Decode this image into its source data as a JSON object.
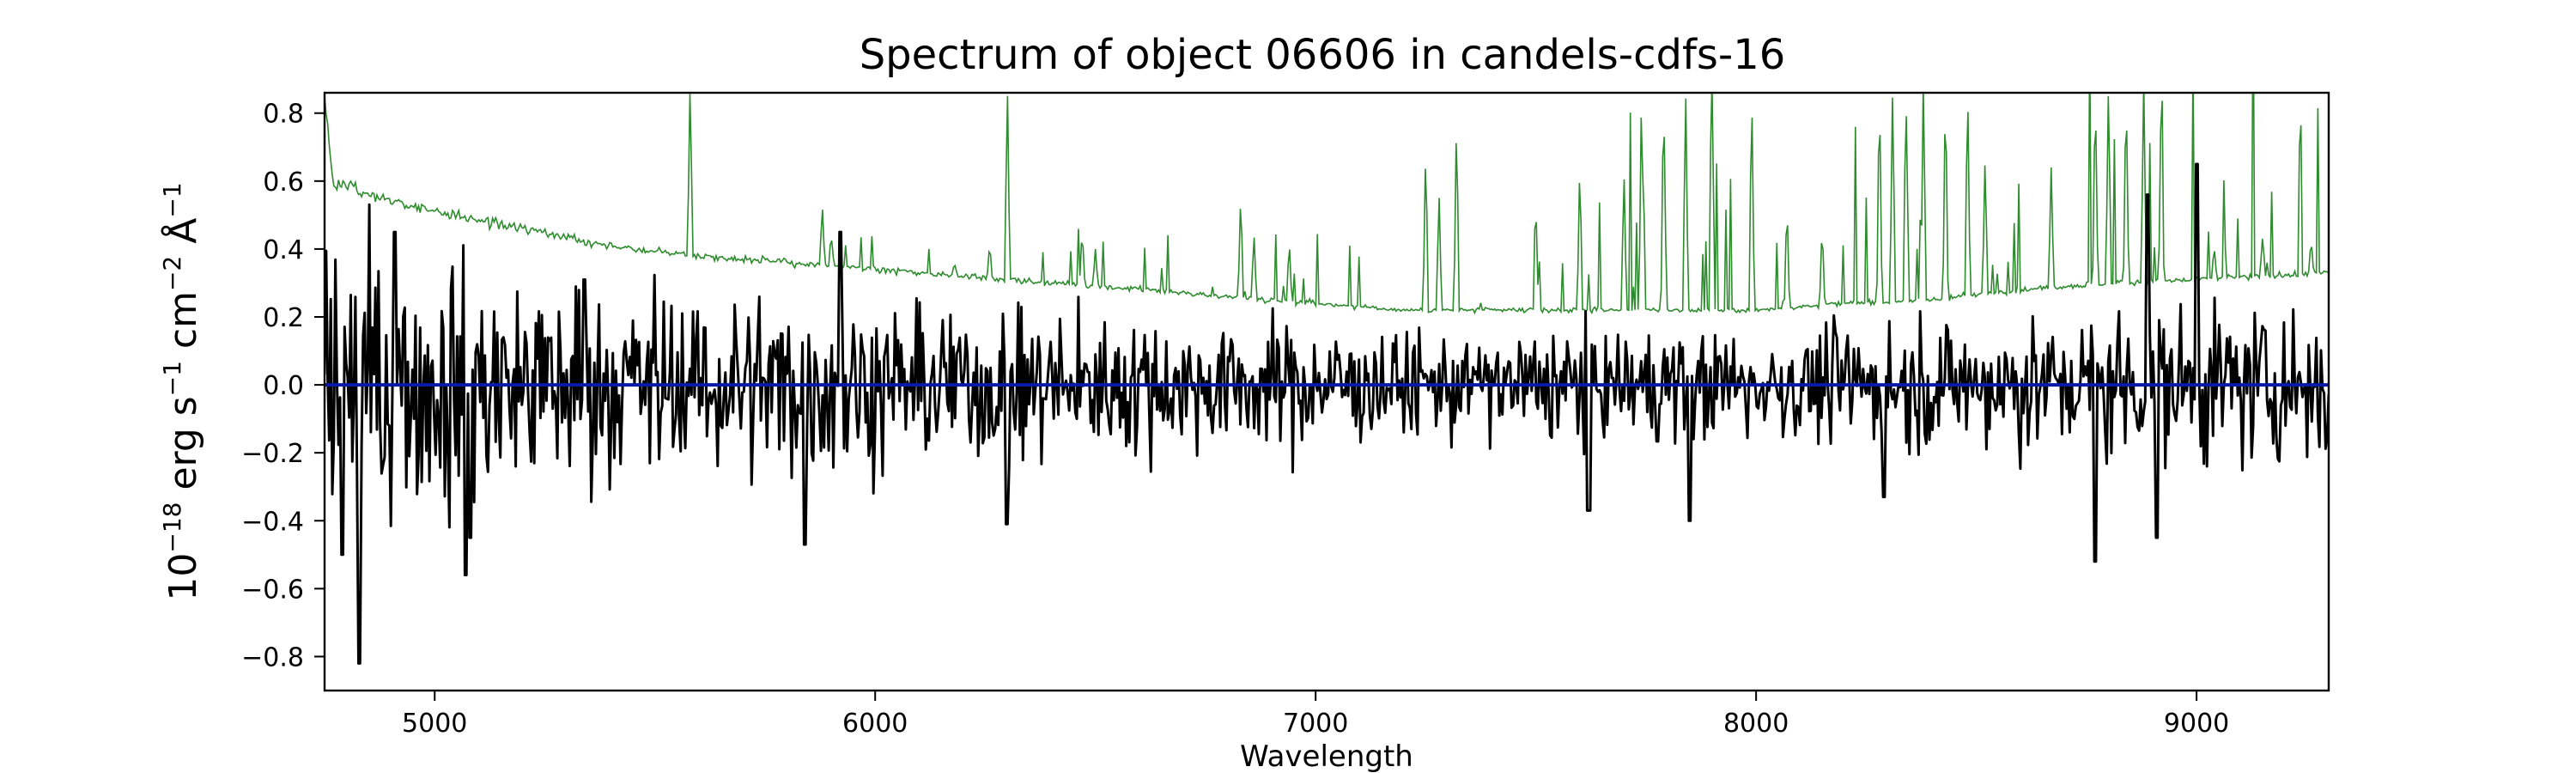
{
  "chart_data": {
    "type": "line",
    "title": "Spectrum of object 06606 in candels-cdfs-16",
    "xlabel": "Wavelength",
    "ylabel": {
      "prefix": "10",
      "exp": "−18",
      "text1": " erg s",
      "exp1": "−1",
      "text2": " cm",
      "exp2": "−2",
      "text3": " Å",
      "exp3": "−1"
    },
    "xlim": [
      4750,
      9300
    ],
    "ylim": [
      -0.9,
      0.86
    ],
    "xticks": [
      5000,
      6000,
      7000,
      8000,
      9000
    ],
    "yticks": [
      -0.8,
      -0.6,
      -0.4,
      -0.2,
      0.0,
      0.2,
      0.4,
      0.6,
      0.8
    ],
    "grid": false,
    "series": [
      {
        "role": "error",
        "color": "#2e8b2e",
        "continuum": [
          [
            4750,
            0.85
          ],
          [
            4770,
            0.58
          ],
          [
            4800,
            0.59
          ],
          [
            4850,
            0.56
          ],
          [
            5000,
            0.51
          ],
          [
            5200,
            0.46
          ],
          [
            5400,
            0.41
          ],
          [
            5600,
            0.38
          ],
          [
            5800,
            0.36
          ],
          [
            6000,
            0.34
          ],
          [
            6200,
            0.32
          ],
          [
            6500,
            0.29
          ],
          [
            6800,
            0.26
          ],
          [
            7000,
            0.24
          ],
          [
            7200,
            0.22
          ],
          [
            7400,
            0.22
          ],
          [
            7600,
            0.22
          ],
          [
            7800,
            0.22
          ],
          [
            8000,
            0.22
          ],
          [
            8200,
            0.24
          ],
          [
            8400,
            0.25
          ],
          [
            8600,
            0.28
          ],
          [
            8800,
            0.3
          ],
          [
            9000,
            0.31
          ],
          [
            9300,
            0.33
          ]
        ],
        "peaks": [
          [
            5580,
            0.9
          ],
          [
            5880,
            0.53
          ],
          [
            5900,
            0.45
          ],
          [
            6300,
            0.9
          ],
          [
            6180,
            0.36
          ],
          [
            6260,
            0.42
          ],
          [
            6470,
            0.46
          ],
          [
            6500,
            0.4
          ],
          [
            6830,
            0.57
          ],
          [
            6860,
            0.45
          ],
          [
            6940,
            0.43
          ],
          [
            7250,
            0.72
          ],
          [
            7280,
            0.58
          ],
          [
            7320,
            0.81
          ],
          [
            7500,
            0.52
          ],
          [
            7600,
            0.67
          ],
          [
            7700,
            0.64
          ],
          [
            7740,
            0.9
          ],
          [
            7790,
            0.9
          ],
          [
            7840,
            0.9
          ],
          [
            7900,
            0.9
          ],
          [
            7990,
            0.9
          ],
          [
            8070,
            0.55
          ],
          [
            8150,
            0.48
          ],
          [
            8280,
            0.9
          ],
          [
            8310,
            0.9
          ],
          [
            8340,
            0.9
          ],
          [
            8380,
            0.9
          ],
          [
            8430,
            0.9
          ],
          [
            8480,
            0.9
          ],
          [
            8520,
            0.68
          ],
          [
            8670,
            0.64
          ],
          [
            8770,
            0.9
          ],
          [
            8800,
            0.9
          ],
          [
            8840,
            0.9
          ],
          [
            8880,
            0.9
          ],
          [
            8920,
            0.9
          ],
          [
            9040,
            0.41
          ],
          [
            9150,
            0.44
          ],
          [
            9260,
            0.43
          ]
        ]
      },
      {
        "role": "flux",
        "color": "#000000",
        "features": [
          [
            4830,
            -0.82
          ],
          [
            4790,
            -0.5
          ],
          [
            4910,
            0.45
          ],
          [
            5070,
            -0.56
          ],
          [
            5080,
            -0.45
          ],
          [
            5340,
            0.31
          ],
          [
            5840,
            -0.47
          ],
          [
            5920,
            0.45
          ],
          [
            6300,
            -0.41
          ],
          [
            7850,
            -0.4
          ],
          [
            8770,
            -0.52
          ],
          [
            8890,
            0.56
          ],
          [
            8910,
            -0.45
          ],
          [
            9000,
            0.65
          ],
          [
            8290,
            -0.33
          ],
          [
            7620,
            -0.37
          ]
        ]
      },
      {
        "role": "model",
        "color": "#0a1aa8",
        "value": 0.0
      }
    ]
  }
}
